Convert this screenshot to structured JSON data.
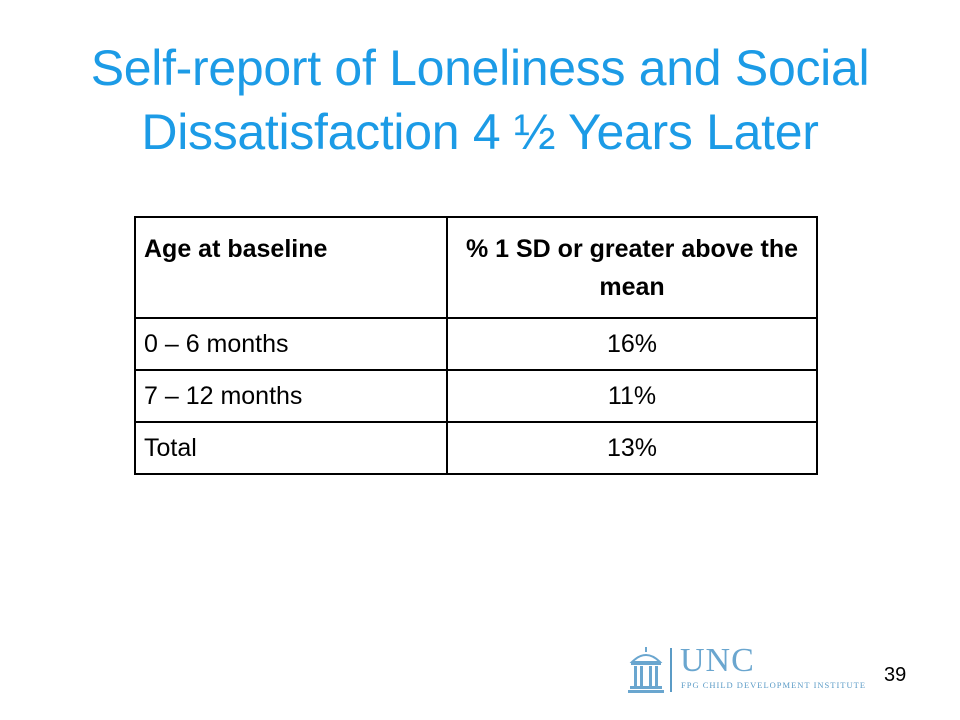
{
  "slide": {
    "title_line1": "Self-report of Loneliness and Social",
    "title_line2": "Dissatisfaction 4 ½ Years Later",
    "page_number": "39"
  },
  "table": {
    "headers": [
      "Age at baseline",
      "% 1 SD or greater above the mean"
    ],
    "rows": [
      [
        "0 – 6 months",
        "16%"
      ],
      [
        "7 – 12 months",
        "11%"
      ],
      [
        "Total",
        "13%"
      ]
    ]
  },
  "logo": {
    "name": "UNC",
    "subtitle": "FPG CHILD DEVELOPMENT INSTITUTE",
    "icon": "old-well-icon"
  },
  "colors": {
    "title": "#1c9be6",
    "logo": "#6aa6cf"
  }
}
